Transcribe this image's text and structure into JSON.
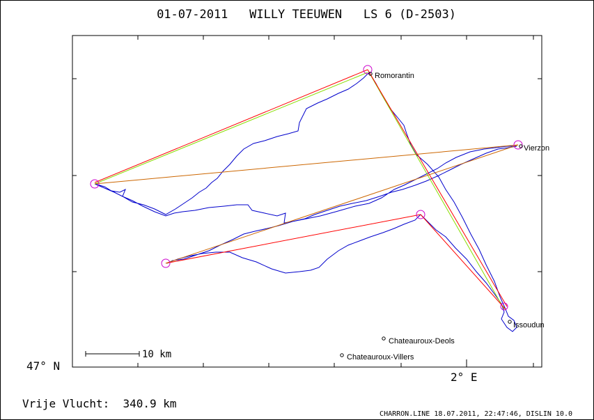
{
  "title": "01-07-2011   WILLY TEEUWEN   LS 6 (D-2503)",
  "lat_label": "47° N",
  "lon_label": "2° E",
  "scale_label": "10 km",
  "footer_left": "Vrije Vlucht:  340.9 km",
  "footer_right": "CHARRON.LINE 18.07.2011, 22:47:46, DISLIN 10.0",
  "places": [
    {
      "name": "Romorantin"
    },
    {
      "name": "Vierzon"
    },
    {
      "name": "Issoudun"
    },
    {
      "name": "Chateauroux-Deols"
    },
    {
      "name": "Chateauroux-Villers"
    }
  ],
  "colors": {
    "track": "#0000cc",
    "optimized_leg": "#ff0000",
    "declared_leg": "#88dd00",
    "combined_leg": "#cc6600",
    "turnpoint": "#cc00cc",
    "axis": "#000000"
  }
}
